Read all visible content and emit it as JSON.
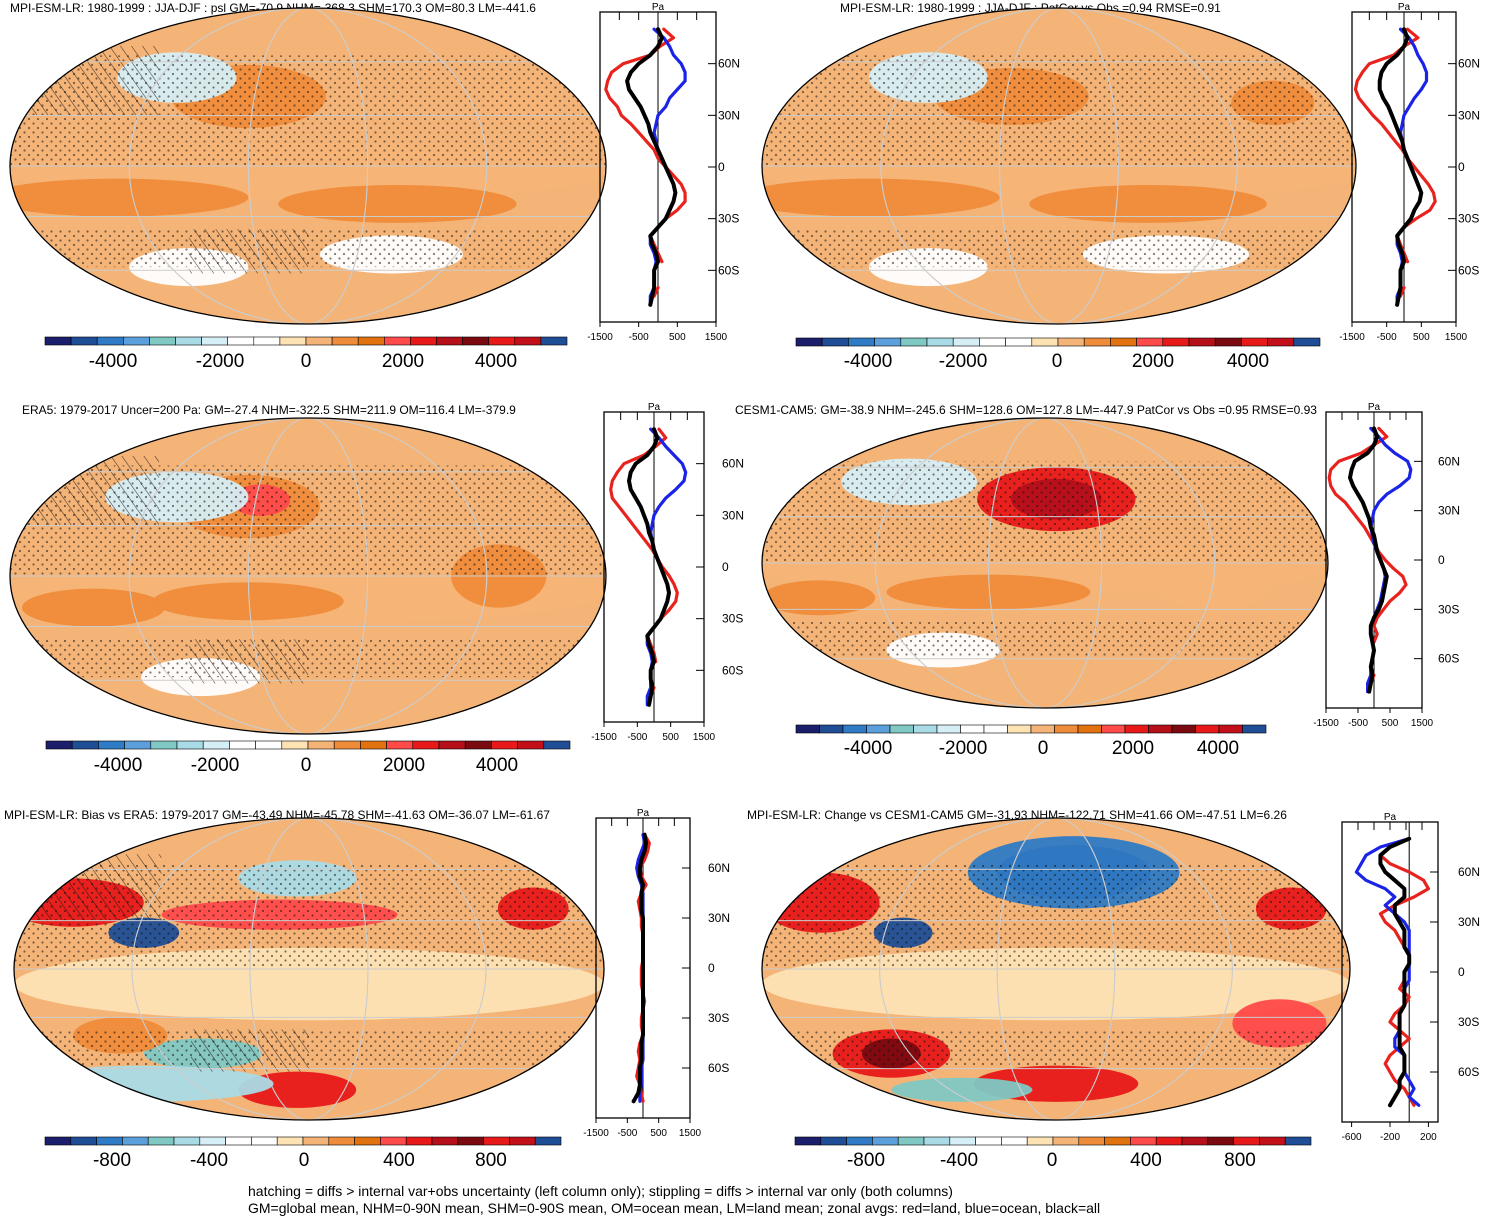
{
  "colors": {
    "land": "#e8231e",
    "ocean": "#1b24e6",
    "all": "#000000",
    "palette": [
      "#1b1f6b",
      "#1f4e96",
      "#2f7bc6",
      "#5b9fdc",
      "#7fc8c4",
      "#a9dbe6",
      "#d6eef5",
      "#ffffff",
      "#ffffff",
      "#fde3b4",
      "#f5b477",
      "#ef8c3a",
      "#e2710f",
      "#ff4a4a",
      "#e81919",
      "#b5101a",
      "#7a0a10",
      "#e81919",
      "#c30f1a",
      "#1f4e96"
    ]
  },
  "footer": {
    "line1": "hatching = diffs > internal var+obs uncertainty (left column only); stippling = diffs > internal var only (both columns)",
    "line2": "GM=global mean, NHM=0-90N mean, SHM=0-90S mean, OM=ocean mean, LM=land mean; zonal avgs: red=land, blue=ocean, black=all"
  },
  "chart_data": [
    {
      "type": "map+line",
      "title": "MPI-ESM-LR: 1980-1999 : JJA-DJF : psl GM=-70.9 NHM=-368.3 SHM=170.3 OM=80.3 LM=-441.6",
      "unit": "Pa",
      "colorbar_ticks": [
        "-4000",
        "-2000",
        "0",
        "2000",
        "4000"
      ],
      "profile_xticks": [
        "-1500",
        "-500",
        "500",
        "1500"
      ],
      "profile_xlim": [
        -1500,
        1500
      ],
      "lat_ticks": [
        "60N",
        "30N",
        "0",
        "30S",
        "60S"
      ],
      "lat": [
        80,
        75,
        70,
        65,
        60,
        55,
        50,
        45,
        40,
        35,
        30,
        25,
        20,
        15,
        10,
        5,
        0,
        -5,
        -10,
        -15,
        -20,
        -25,
        -30,
        -35,
        -40,
        -45,
        -50,
        -55,
        -60,
        -65,
        -70,
        -75,
        -80
      ],
      "series": [
        {
          "name": "land",
          "values": [
            150,
            400,
            50,
            -200,
            -900,
            -1200,
            -1300,
            -1350,
            -1250,
            -1050,
            -950,
            -700,
            -500,
            -300,
            -100,
            0,
            200,
            400,
            600,
            700,
            700,
            500,
            200,
            0,
            -200,
            -100,
            0,
            100,
            null,
            null,
            0,
            -100,
            null
          ]
        },
        {
          "name": "ocean",
          "values": [
            -100,
            150,
            300,
            400,
            600,
            700,
            700,
            500,
            300,
            200,
            0,
            -50,
            -100,
            -50,
            0,
            100,
            200,
            300,
            400,
            450,
            400,
            300,
            200,
            0,
            -200,
            -200,
            -100,
            -50,
            -100,
            -100,
            -100,
            -200,
            -200
          ]
        },
        {
          "name": "all",
          "values": [
            0,
            100,
            0,
            -200,
            -500,
            -700,
            -800,
            -750,
            -600,
            -450,
            -350,
            -250,
            -200,
            -100,
            0,
            100,
            200,
            300,
            400,
            450,
            400,
            300,
            200,
            0,
            -200,
            -150,
            -50,
            0,
            -100,
            -100,
            -100,
            -150,
            -200
          ]
        }
      ]
    },
    {
      "type": "map+line",
      "title": "MPI-ESM-LR: 1980-1999 : JJA-DJF : PatCor vs Obs =0.94 RMSE=0.91",
      "unit": "Pa",
      "colorbar_ticks": [
        "-4000",
        "-2000",
        "0",
        "2000",
        "4000"
      ],
      "profile_xticks": [
        "-1500",
        "-500",
        "500",
        "1500"
      ],
      "profile_xlim": [
        -1500,
        1500
      ],
      "lat_ticks": [
        "60N",
        "30N",
        "0",
        "30S",
        "60S"
      ],
      "lat": [
        80,
        75,
        70,
        65,
        60,
        55,
        50,
        45,
        40,
        35,
        30,
        25,
        20,
        15,
        10,
        5,
        0,
        -5,
        -10,
        -15,
        -20,
        -25,
        -30,
        -35,
        -40,
        -45,
        -50,
        -55,
        -60,
        -65,
        -70,
        -75,
        -80
      ],
      "series": [
        {
          "name": "land",
          "values": [
            100,
            400,
            0,
            -300,
            -1000,
            -1200,
            -1350,
            -1400,
            -1300,
            -1100,
            -900,
            -650,
            -450,
            -250,
            -50,
            100,
            300,
            500,
            700,
            850,
            900,
            750,
            350,
            0,
            -200,
            -100,
            0,
            100,
            null,
            null,
            0,
            -100,
            null
          ]
        },
        {
          "name": "ocean",
          "values": [
            -100,
            150,
            300,
            400,
            550,
            650,
            650,
            500,
            300,
            150,
            0,
            -50,
            -100,
            -50,
            0,
            100,
            200,
            300,
            400,
            500,
            450,
            300,
            200,
            0,
            -200,
            -200,
            -100,
            -50,
            -100,
            -100,
            -100,
            -200,
            -200
          ]
        },
        {
          "name": "all",
          "values": [
            0,
            100,
            0,
            -200,
            -500,
            -650,
            -700,
            -700,
            -600,
            -450,
            -350,
            -250,
            -150,
            -50,
            0,
            100,
            200,
            300,
            400,
            500,
            450,
            300,
            200,
            0,
            -200,
            -150,
            -50,
            0,
            -100,
            -100,
            -100,
            -150,
            -200
          ]
        }
      ]
    },
    {
      "type": "map+line",
      "title": "ERA5: 1979-2017 Uncer=200 Pa: GM=-27.4 NHM=-322.5 SHM=211.9 OM=116.4 LM=-379.9",
      "unit": "Pa",
      "colorbar_ticks": [
        "-4000",
        "-2000",
        "0",
        "2000",
        "4000"
      ],
      "profile_xticks": [
        "-1500",
        "-500",
        "500",
        "1500"
      ],
      "profile_xlim": [
        -1500,
        1500
      ],
      "lat_ticks": [
        "60N",
        "30N",
        "0",
        "30S",
        "60S"
      ],
      "lat": [
        80,
        75,
        70,
        65,
        60,
        55,
        50,
        45,
        40,
        35,
        30,
        25,
        20,
        15,
        10,
        5,
        0,
        -5,
        -10,
        -15,
        -20,
        -25,
        -30,
        -35,
        -40,
        -45,
        -50,
        -55,
        -60,
        -65,
        -70,
        -75,
        -80
      ],
      "series": [
        {
          "name": "land",
          "values": [
            150,
            350,
            50,
            -300,
            -900,
            -1100,
            -1250,
            -1300,
            -1250,
            -1050,
            -850,
            -650,
            -450,
            -250,
            -50,
            100,
            250,
            450,
            600,
            700,
            650,
            450,
            200,
            0,
            -200,
            -100,
            0,
            50,
            null,
            null,
            0,
            -100,
            null
          ]
        },
        {
          "name": "ocean",
          "values": [
            -100,
            150,
            350,
            600,
            850,
            950,
            900,
            650,
            350,
            150,
            0,
            -50,
            -100,
            -50,
            0,
            100,
            200,
            300,
            400,
            450,
            400,
            300,
            200,
            0,
            -200,
            -200,
            -100,
            -50,
            -100,
            -100,
            -100,
            -200,
            -200
          ]
        },
        {
          "name": "all",
          "values": [
            0,
            100,
            0,
            -200,
            -550,
            -700,
            -750,
            -700,
            -550,
            -400,
            -300,
            -200,
            -150,
            -50,
            0,
            100,
            200,
            300,
            400,
            450,
            400,
            300,
            200,
            0,
            -200,
            -150,
            -50,
            0,
            -100,
            -100,
            -50,
            -100,
            -150
          ]
        }
      ]
    },
    {
      "type": "map+line",
      "title": "CESM1-CAM5: GM=-38.9 NHM=-245.6 SHM=128.6 OM=127.8 LM=-447.9 PatCor vs Obs =0.95 RMSE=0.93",
      "unit": "Pa",
      "colorbar_ticks": [
        "-4000",
        "-2000",
        "0",
        "2000",
        "4000"
      ],
      "profile_xticks": [
        "-1500",
        "-500",
        "500",
        "1500"
      ],
      "profile_xlim": [
        -1500,
        1500
      ],
      "lat_ticks": [
        "60N",
        "30N",
        "0",
        "30S",
        "60S"
      ],
      "lat": [
        80,
        75,
        70,
        65,
        60,
        55,
        50,
        45,
        40,
        35,
        30,
        25,
        20,
        15,
        10,
        5,
        0,
        -5,
        -10,
        -15,
        -20,
        -25,
        -30,
        -35,
        -40,
        -45,
        -50,
        -55,
        -60,
        -65,
        -70,
        -75,
        -80
      ],
      "series": [
        {
          "name": "land",
          "values": [
            150,
            400,
            0,
            -400,
            -1100,
            -1350,
            -1400,
            -1350,
            -1200,
            -900,
            -700,
            -500,
            -300,
            -150,
            0,
            150,
            350,
            600,
            900,
            1000,
            800,
            500,
            300,
            100,
            0,
            100,
            0,
            null,
            null,
            null,
            0,
            -100,
            null
          ]
        },
        {
          "name": "ocean",
          "values": [
            -100,
            150,
            350,
            650,
            1050,
            1150,
            1100,
            800,
            400,
            150,
            0,
            -50,
            -100,
            -50,
            0,
            100,
            200,
            300,
            350,
            300,
            250,
            200,
            100,
            0,
            -100,
            -100,
            -50,
            0,
            -50,
            -100,
            -100,
            -200,
            -200
          ]
        },
        {
          "name": "all",
          "values": [
            0,
            100,
            0,
            -200,
            -600,
            -700,
            -750,
            -650,
            -500,
            -350,
            -250,
            -150,
            -100,
            0,
            50,
            100,
            200,
            300,
            400,
            350,
            300,
            250,
            150,
            0,
            -100,
            -100,
            -50,
            0,
            -50,
            -100,
            -50,
            -100,
            -150
          ]
        }
      ]
    },
    {
      "type": "map+line",
      "title": "MPI-ESM-LR: Bias vs ERA5: 1979-2017 GM=-43.49 NHM=-45.78 SHM=-41.63 OM=-36.07 LM=-61.67",
      "unit": "Pa",
      "colorbar_ticks": [
        "-800",
        "-400",
        "0",
        "400",
        "800"
      ],
      "profile_xticks": [
        "-1500",
        "-500",
        "500",
        "1500"
      ],
      "profile_xlim": [
        -1500,
        1500
      ],
      "lat_ticks": [
        "60N",
        "30N",
        "0",
        "30S",
        "60S"
      ],
      "lat": [
        80,
        75,
        70,
        65,
        60,
        55,
        50,
        45,
        40,
        35,
        30,
        25,
        20,
        15,
        10,
        5,
        0,
        -5,
        -10,
        -15,
        -20,
        -25,
        -30,
        -35,
        -40,
        -45,
        -50,
        -55,
        -60,
        -65,
        -70,
        -75,
        -80
      ],
      "series": [
        {
          "name": "land",
          "values": [
            50,
            200,
            150,
            50,
            -100,
            -50,
            100,
            -50,
            -150,
            -100,
            -50,
            -50,
            0,
            0,
            0,
            0,
            -50,
            -50,
            -50,
            0,
            50,
            0,
            -50,
            -50,
            0,
            -100,
            -150,
            -100,
            -150,
            -200,
            -100,
            -50,
            0
          ]
        },
        {
          "name": "ocean",
          "values": [
            0,
            50,
            -50,
            -150,
            -200,
            -150,
            -50,
            0,
            0,
            0,
            0,
            0,
            0,
            0,
            0,
            0,
            0,
            0,
            0,
            0,
            0,
            0,
            0,
            0,
            0,
            0,
            0,
            0,
            -50,
            -50,
            -50,
            -100,
            -100
          ]
        },
        {
          "name": "all",
          "values": [
            50,
            100,
            50,
            -50,
            -100,
            -100,
            0,
            -50,
            -50,
            -50,
            0,
            0,
            0,
            0,
            0,
            0,
            0,
            0,
            0,
            0,
            0,
            0,
            0,
            0,
            0,
            -50,
            -50,
            -50,
            -100,
            -100,
            -100,
            -150,
            -300
          ]
        }
      ]
    },
    {
      "type": "map+line",
      "title": "MPI-ESM-LR: Change vs CESM1-CAM5 GM=-31.93 NHM=-122.71 SHM=41.66 OM=-47.51 LM=6.26",
      "unit": "Pa",
      "colorbar_ticks": [
        "-800",
        "-400",
        "0",
        "400",
        "800"
      ],
      "profile_xticks": [
        "-600",
        "-200",
        "200"
      ],
      "profile_xlim": [
        -700,
        300
      ],
      "lat_ticks": [
        "60N",
        "30N",
        "0",
        "30S",
        "60S"
      ],
      "lat": [
        80,
        75,
        70,
        65,
        60,
        55,
        50,
        45,
        40,
        35,
        30,
        25,
        20,
        15,
        10,
        5,
        0,
        -5,
        -10,
        -15,
        -20,
        -25,
        -30,
        -35,
        -40,
        -45,
        -50,
        -55,
        -60,
        -65,
        -70,
        -75,
        -80
      ],
      "series": [
        {
          "name": "land",
          "values": [
            0,
            -200,
            -300,
            -200,
            0,
            150,
            200,
            50,
            -150,
            -300,
            -250,
            -150,
            -100,
            -50,
            0,
            0,
            -50,
            -50,
            -100,
            0,
            -50,
            -150,
            -200,
            -100,
            0,
            -100,
            -200,
            -250,
            -200,
            -150,
            -50,
            0,
            50
          ]
        },
        {
          "name": "ocean",
          "values": [
            0,
            -300,
            -450,
            -500,
            -550,
            -450,
            -250,
            -150,
            -250,
            -150,
            -50,
            0,
            0,
            0,
            0,
            0,
            0,
            0,
            -50,
            -50,
            -50,
            -100,
            -100,
            -100,
            -150,
            -150,
            -50,
            -50,
            -50,
            0,
            50,
            0,
            100
          ]
        },
        {
          "name": "all",
          "values": [
            0,
            -200,
            -300,
            -300,
            -250,
            -150,
            -50,
            -50,
            -150,
            -150,
            -100,
            -50,
            -50,
            -50,
            0,
            0,
            -50,
            -50,
            -50,
            -50,
            -50,
            -100,
            -100,
            -100,
            -100,
            -100,
            -50,
            -50,
            -50,
            -100,
            -100,
            -150,
            -200
          ]
        }
      ]
    }
  ]
}
